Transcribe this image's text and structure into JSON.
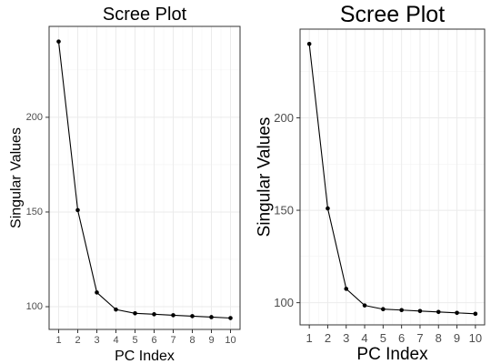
{
  "chart_data": [
    {
      "type": "line",
      "title": "Scree Plot",
      "xlabel": "PC Index",
      "ylabel": "Singular Values",
      "x": [
        1,
        2,
        3,
        4,
        5,
        6,
        7,
        8,
        9,
        10
      ],
      "series": [
        {
          "values": [
            240,
            151,
            107.5,
            98.5,
            96.5,
            96,
            95.5,
            95,
            94.5,
            94
          ]
        }
      ],
      "xlim": [
        0.5,
        10.5
      ],
      "ylim": [
        88,
        248
      ],
      "x_ticks": [
        1,
        2,
        3,
        4,
        5,
        6,
        7,
        8,
        9,
        10
      ],
      "y_ticks": [
        100,
        150,
        200
      ],
      "grid": true,
      "legend": "none",
      "line_color": "#000000"
    },
    {
      "type": "line",
      "title": "Scree Plot",
      "xlabel": "PC Index",
      "ylabel": "Singular Values",
      "x": [
        1,
        2,
        3,
        4,
        5,
        6,
        7,
        8,
        9,
        10
      ],
      "series": [
        {
          "values": [
            240,
            151,
            107.5,
            98.5,
            96.5,
            96,
            95.5,
            95,
            94.5,
            94
          ]
        }
      ],
      "xlim": [
        0.5,
        10.5
      ],
      "ylim": [
        88,
        248
      ],
      "x_ticks": [
        1,
        2,
        3,
        4,
        5,
        6,
        7,
        8,
        9,
        10
      ],
      "y_ticks": [
        100,
        150,
        200
      ],
      "grid": true,
      "legend": "none",
      "line_color": "#000000"
    }
  ]
}
